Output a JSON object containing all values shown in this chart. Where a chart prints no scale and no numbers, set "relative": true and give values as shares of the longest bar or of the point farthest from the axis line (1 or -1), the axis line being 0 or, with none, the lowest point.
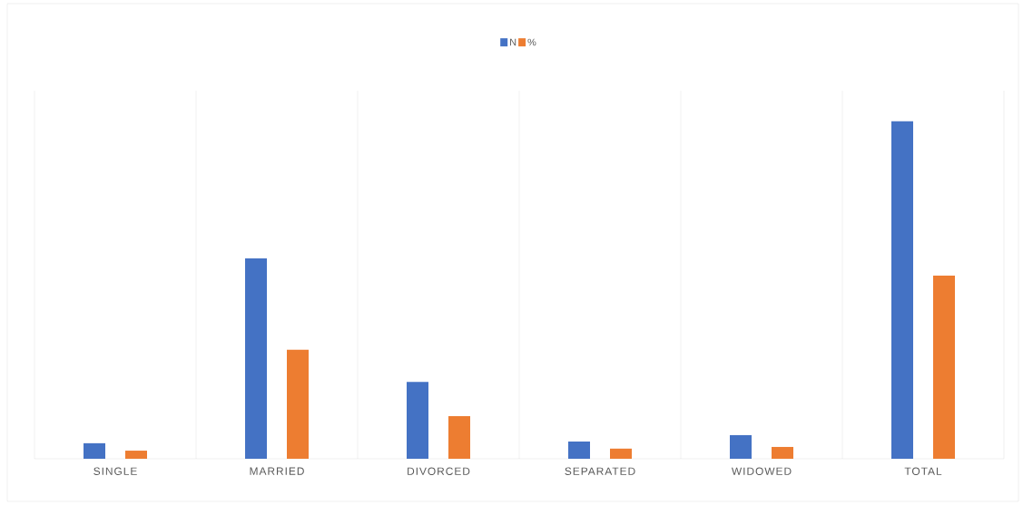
{
  "chart_data": {
    "type": "bar",
    "relative": true,
    "legend": "top",
    "grid": "x",
    "categories": [
      "SINGLE",
      "MARRIED",
      "DIVORCED",
      "SEPARATED",
      "WIDOWED",
      "TOTAL"
    ],
    "series": [
      {
        "name": "N",
        "color": "#4472c4",
        "values": [
          0.046,
          0.594,
          0.228,
          0.051,
          0.07,
          1
        ]
      },
      {
        "name": "%",
        "color": "#ed7d31",
        "values": [
          0.024,
          0.323,
          0.126,
          0.03,
          0.035,
          0.543
        ]
      }
    ]
  }
}
